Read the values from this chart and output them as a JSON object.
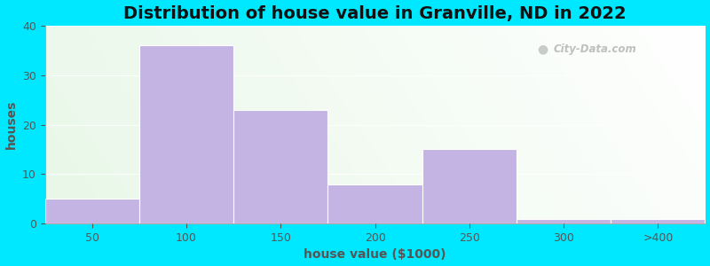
{
  "title": "Distribution of house value in Granville, ND in 2022",
  "xlabel": "house value ($1000)",
  "ylabel": "houses",
  "tick_labels": [
    "50",
    "100",
    "150",
    "200",
    "250",
    "300",
    ">400"
  ],
  "values": [
    5,
    36,
    23,
    8,
    15,
    1,
    1
  ],
  "bar_color": "#c4b4e4",
  "bar_edgecolor": "#c4b4e4",
  "ylim": [
    0,
    40
  ],
  "yticks": [
    0,
    10,
    20,
    30,
    40
  ],
  "figure_bg": "#00e8ff",
  "title_fontsize": 14,
  "axis_label_fontsize": 10,
  "tick_fontsize": 9,
  "watermark": "City-Data.com",
  "grid_color": "#e0e0e0",
  "text_color": "#555555"
}
